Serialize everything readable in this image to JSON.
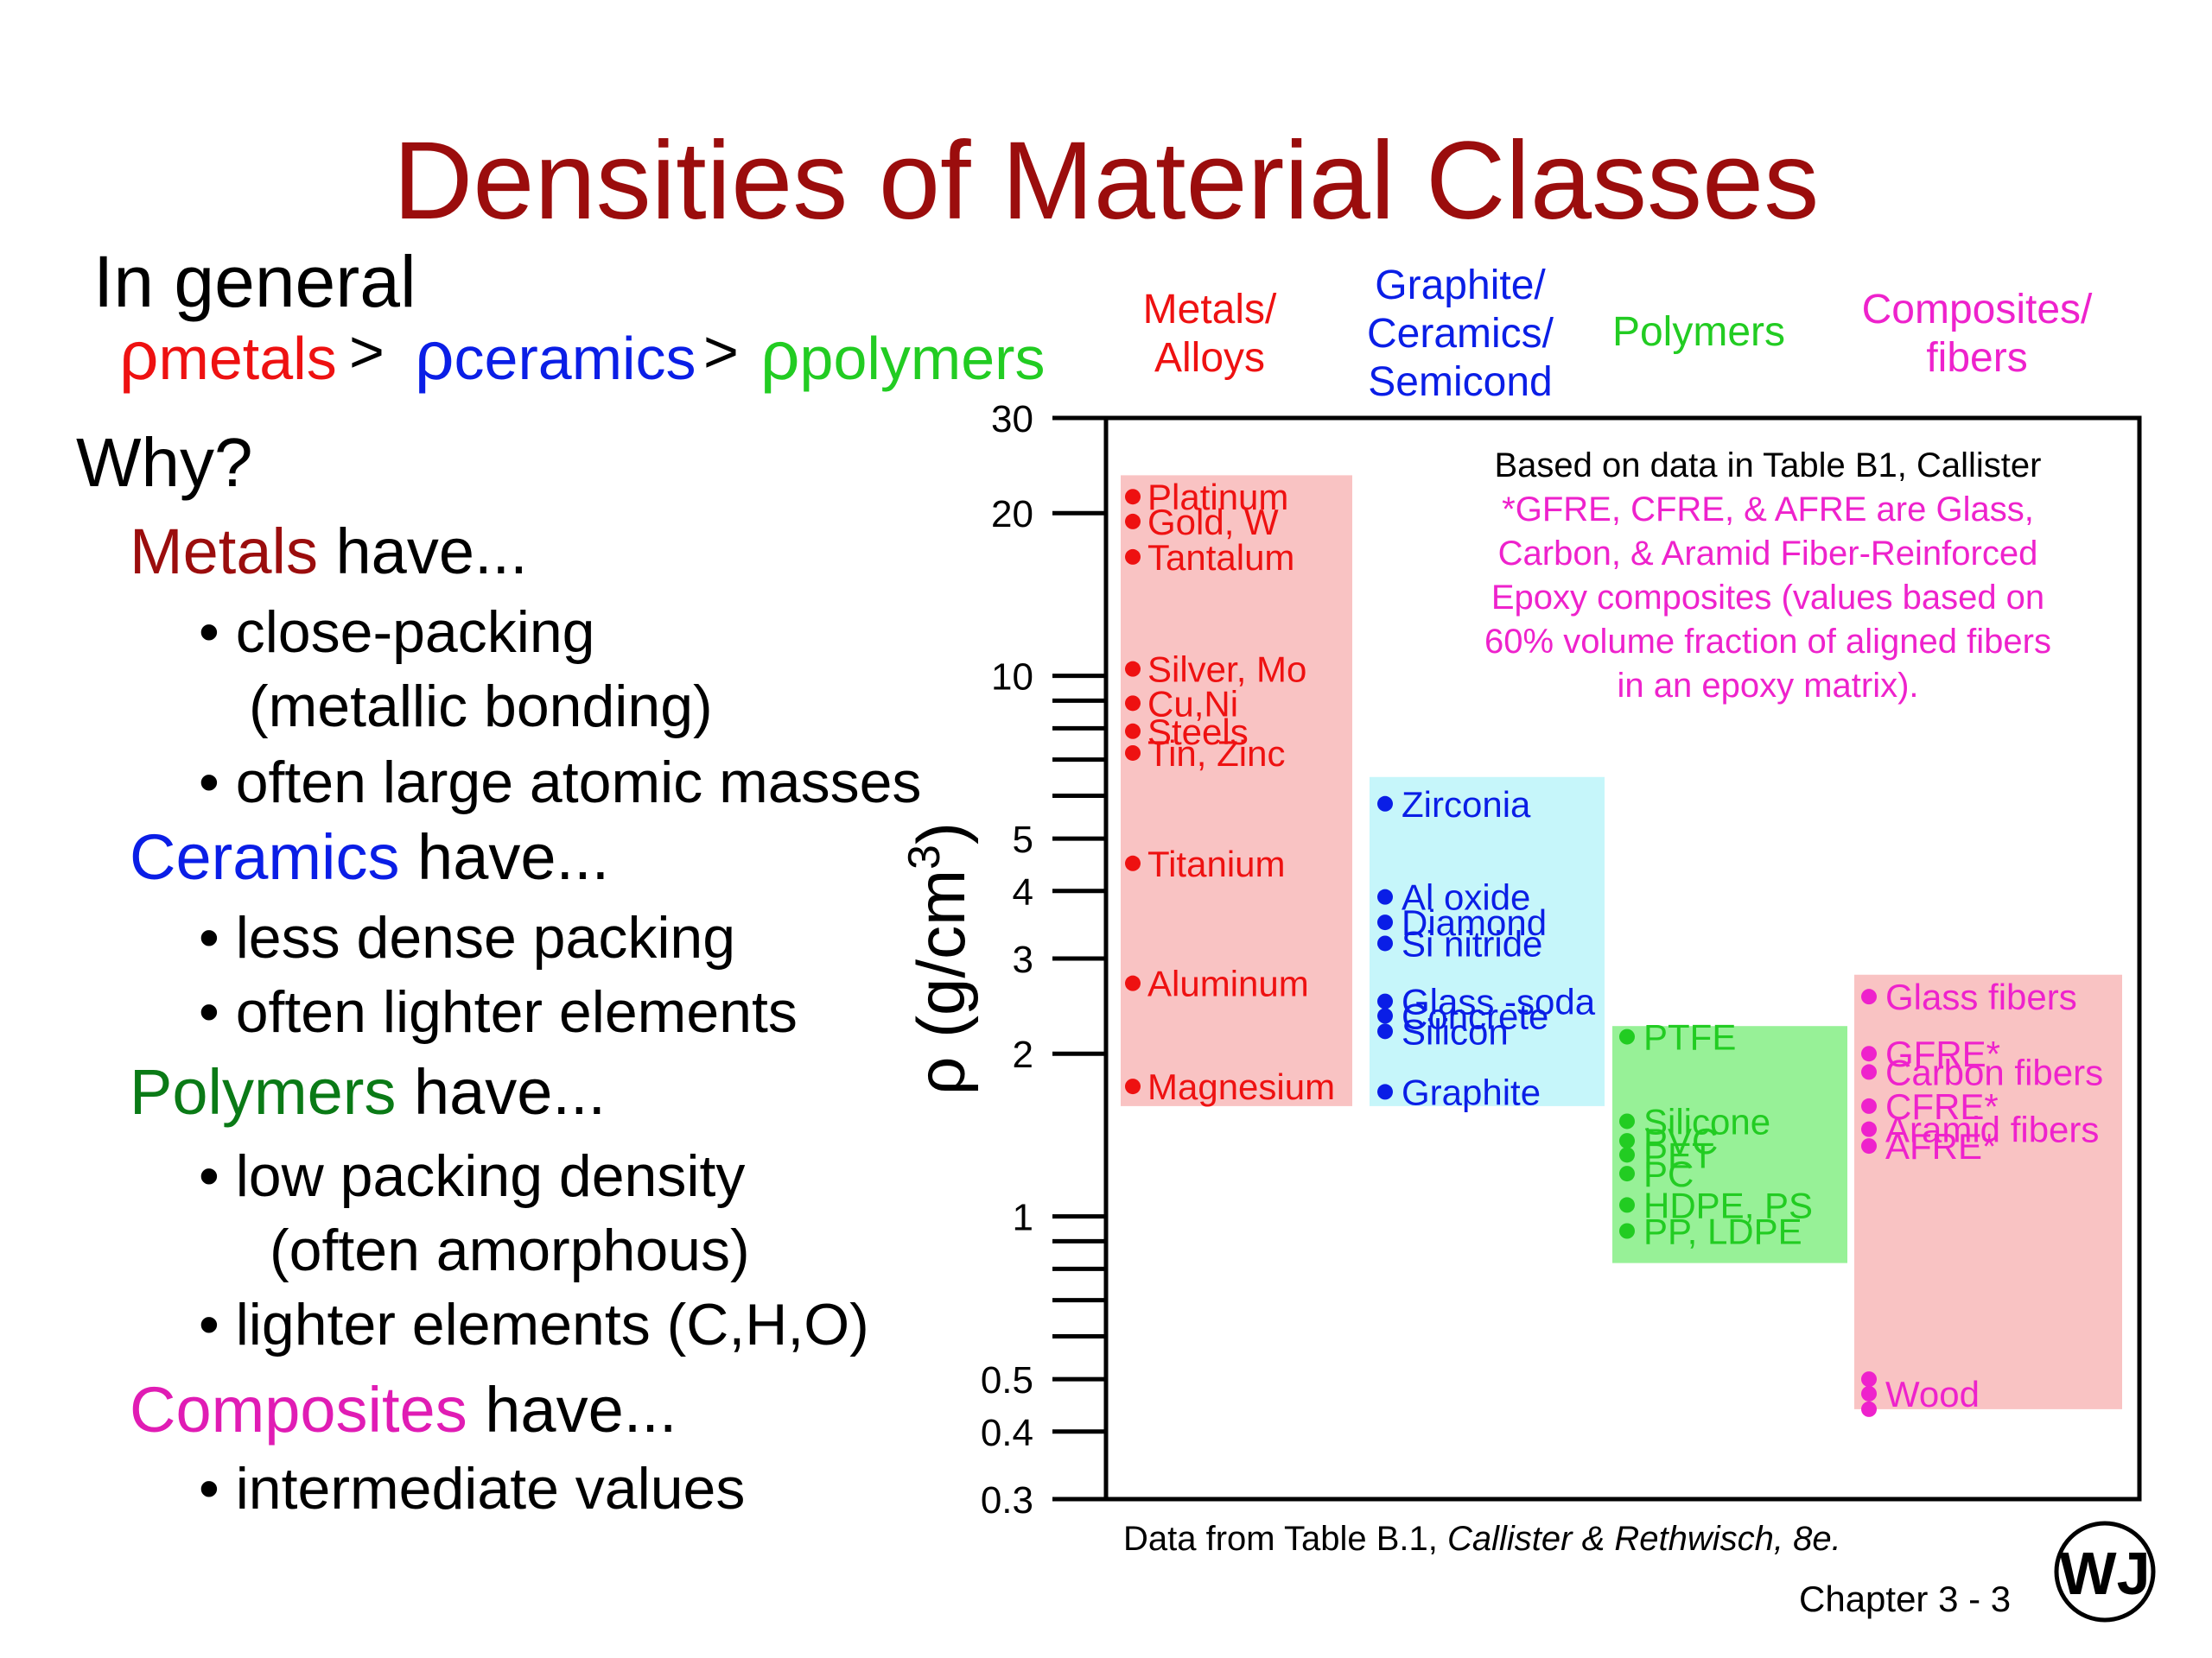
{
  "title": "Densities of Material Classes",
  "left": {
    "in_general": "In general",
    "rho_symbol": "ρ",
    "rho_terms": [
      "metals",
      "ceramics",
      "polymers"
    ],
    "gt": ">",
    "why": "Why?",
    "sections": [
      {
        "name": "Metals",
        "suffix": " have...",
        "color": "#9b0d0d",
        "bullets": [
          "• close-packing",
          "(metallic bonding)",
          "• often large atomic masses"
        ]
      },
      {
        "name": "Ceramics",
        "suffix": " have...",
        "color": "#0a1ee6",
        "bullets": [
          "• less dense packing",
          "• often lighter elements"
        ]
      },
      {
        "name": "Polymers",
        "suffix": " have...",
        "color": "#0a7a16",
        "bullets": [
          "• low packing density",
          "(often amorphous)",
          "• lighter elements (C,H,O)"
        ]
      },
      {
        "name": "Composites",
        "suffix": " have...",
        "color": "#e01cb4",
        "bullets": [
          "• intermediate values"
        ]
      }
    ],
    "colors": {
      "metals": "#ee1111",
      "ceramics": "#0a1ee6",
      "polymers": "#22cc22"
    }
  },
  "chart_data": {
    "type": "scatter",
    "ylabel": "ρ (g/cm",
    "ylabel_sup": "3",
    "ylabel_close": ")",
    "yscale": "log",
    "ylim": [
      0.3,
      30
    ],
    "yticks": [
      {
        "value": 30,
        "label": "30"
      },
      {
        "value": 20,
        "label": "20"
      },
      {
        "value": 10,
        "label": "10"
      },
      {
        "value": 5,
        "label": "5"
      },
      {
        "value": 4,
        "label": "4"
      },
      {
        "value": 3,
        "label": "3"
      },
      {
        "value": 2,
        "label": "2"
      },
      {
        "value": 1,
        "label": "1"
      },
      {
        "value": 0.5,
        "label": "0.5"
      },
      {
        "value": 0.4,
        "label": "0.4"
      },
      {
        "value": 0.3,
        "label": "0.3"
      }
    ],
    "minor_ticks": [
      9,
      8,
      7,
      6,
      0.9,
      0.8,
      0.7,
      0.6
    ],
    "note": [
      "Based on data in Table B1, Callister",
      "*GFRE, CFRE, & AFRE are Glass,",
      "Carbon, & Aramid Fiber-Reinforced",
      "Epoxy composites (values based on",
      "60% volume fraction of aligned fibers",
      "in an epoxy matrix)."
    ],
    "note_colors": {
      "first": "#000000",
      "rest": "#ee22cc"
    },
    "categories": [
      {
        "name": [
          "Metals/",
          "Alloys"
        ],
        "color": "#ee1111",
        "box_color": "#f9c3c3",
        "range": [
          1.6,
          23.5
        ],
        "points": [
          {
            "label": "Platinum",
            "y": 21.45
          },
          {
            "label": "Gold, W",
            "y": 19.3
          },
          {
            "label": "Tantalum",
            "y": 16.6
          },
          {
            "label": "Silver, Mo",
            "y": 10.3
          },
          {
            "label": "Cu,Ni",
            "y": 8.9
          },
          {
            "label": "Steels",
            "y": 7.9
          },
          {
            "label": "Tin, Zinc",
            "y": 7.2
          },
          {
            "label": "Titanium",
            "y": 4.5
          },
          {
            "label": "Aluminum",
            "y": 2.7
          },
          {
            "label": "Magnesium",
            "y": 1.74
          }
        ]
      },
      {
        "name": [
          "Graphite/",
          "Ceramics/",
          "Semicond"
        ],
        "color": "#0a1ee6",
        "box_color": "#c6f6fa",
        "range": [
          1.6,
          6.5
        ],
        "points": [
          {
            "label": "Zirconia",
            "y": 5.8
          },
          {
            "label": "Al oxide",
            "y": 3.9
          },
          {
            "label": "Diamond",
            "y": 3.5
          },
          {
            "label": "Si nitride",
            "y": 3.2
          },
          {
            "label": "Glass -soda",
            "y": 2.5
          },
          {
            "label": "Concrete",
            "y": 2.35
          },
          {
            "label": "Silicon",
            "y": 2.2
          },
          {
            "label": "Graphite",
            "y": 1.7
          }
        ]
      },
      {
        "name": [
          "Polymers"
        ],
        "color": "#22cc22",
        "box_color": "#97f197",
        "range": [
          0.82,
          2.25
        ],
        "points": [
          {
            "label": "PTFE",
            "y": 2.15
          },
          {
            "label": "Silicone",
            "y": 1.5
          },
          {
            "label": "PVC",
            "y": 1.38
          },
          {
            "label": "PET",
            "y": 1.3
          },
          {
            "label": "PC",
            "y": 1.2
          },
          {
            "label": "HDPE, PS",
            "y": 1.05
          },
          {
            "label": "PP, LDPE",
            "y": 0.94
          }
        ]
      },
      {
        "name": [
          "Composites/",
          "fibers"
        ],
        "color": "#ee22cc",
        "box_color": "#f9c3c3",
        "range": [
          0.44,
          2.8
        ],
        "points": [
          {
            "label": "Glass fibers",
            "y": 2.55
          },
          {
            "label": "GFRE*",
            "y": 2.0
          },
          {
            "label": "Carbon  fibers",
            "y": 1.85
          },
          {
            "label": "CFRE*",
            "y": 1.6
          },
          {
            "label": "Aramid fibers",
            "y": 1.45
          },
          {
            "label": "AFRE*",
            "y": 1.35
          },
          {
            "label": "",
            "y": 0.5
          },
          {
            "label": "Wood",
            "y": 0.47
          },
          {
            "label": "",
            "y": 0.44
          }
        ]
      }
    ]
  },
  "footer": {
    "data_prefix": "Data from Table B.1, ",
    "data_ref": "Callister & Rethwisch, 8e.",
    "chapter": "Chapter 3 -  3",
    "logo_letters": "WJ"
  }
}
